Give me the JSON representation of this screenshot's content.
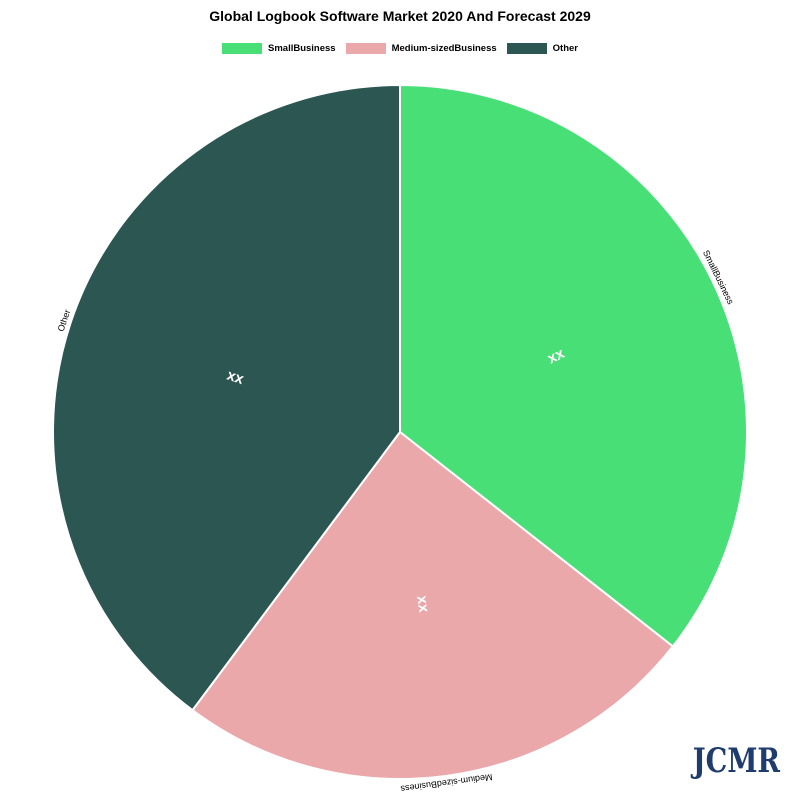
{
  "chart_data": {
    "type": "pie",
    "title": "Global Logbook Software Market 2020 And Forecast 2029",
    "categories": [
      "SmallBusiness",
      "Medium-sizedBusiness",
      "Other"
    ],
    "values": [
      35.6,
      24.6,
      39.8
    ],
    "data_labels": [
      "xx",
      "xx",
      "xx"
    ],
    "legend_position": "top",
    "colors": [
      "#49df77",
      "#eba8ab",
      "#2b5651"
    ]
  },
  "watermark": "JCMR"
}
